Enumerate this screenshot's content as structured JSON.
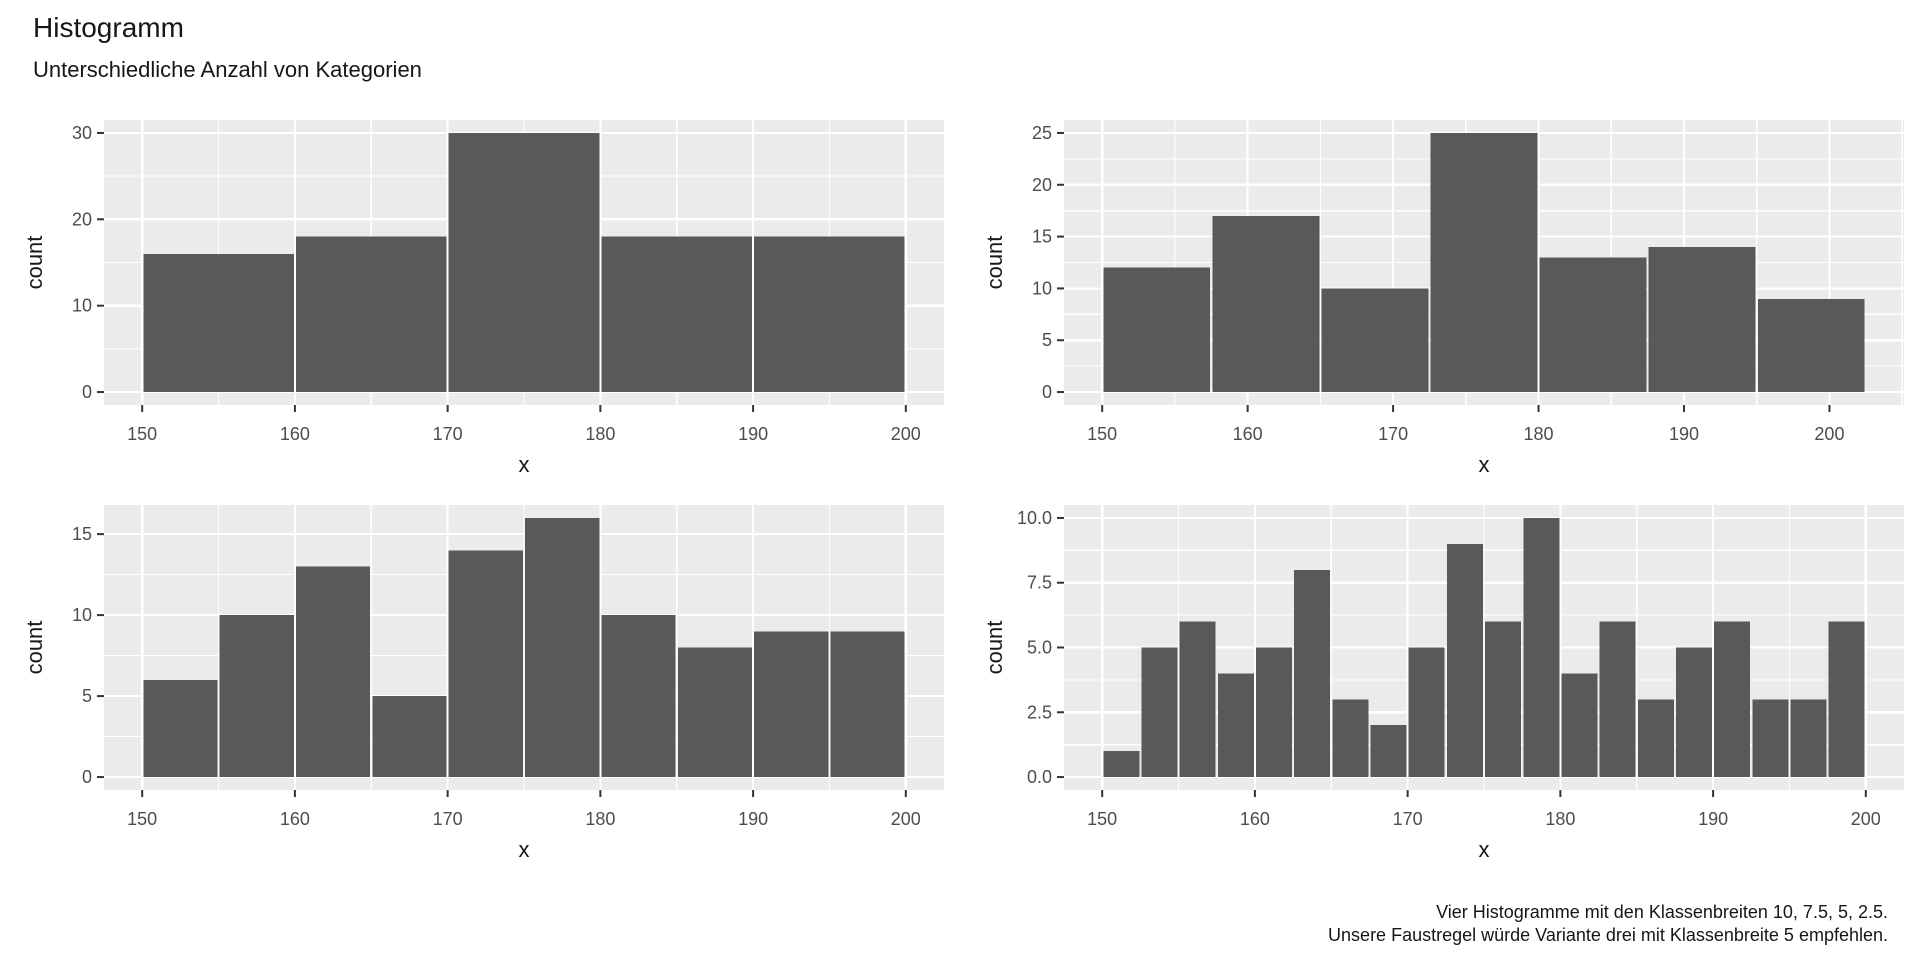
{
  "page": {
    "title": "Histogramm",
    "subtitle": "Unterschiedliche Anzahl von Kategorien",
    "caption_line1": "Vier Histogramme mit den Klassenbreiten 10, 7.5, 5, 2.5.",
    "caption_line2": "Unsere Faustregel würde Variante drei mit Klassenbreite 5 empfehlen."
  },
  "style": {
    "panel_bg": "#EBEBEB",
    "grid_color": "#FFFFFF",
    "bar_fill": "#595959",
    "tick_label_color": "#4D4D4D",
    "axis_title_color": "#1A1A1A",
    "tick_mark_color": "#333333"
  },
  "chart_data": [
    {
      "type": "bar",
      "panel": "top-left",
      "description": "Histogramm Klassenbreite 10",
      "xlabel": "x",
      "ylabel": "count",
      "bin_start": 150,
      "binwidth": 10,
      "counts": [
        16,
        18,
        30,
        18,
        18
      ],
      "xlim": [
        147.5,
        202.5
      ],
      "ylim": [
        -1.5,
        31.5
      ],
      "x_ticks": [
        150,
        160,
        170,
        180,
        190,
        200
      ],
      "x_minor": [
        155,
        165,
        175,
        185,
        195
      ],
      "y_ticks": [
        0,
        10,
        20,
        30
      ],
      "y_tick_labels": [
        "0",
        "10",
        "20",
        "30"
      ],
      "y_minor": [
        5,
        15,
        25
      ],
      "grid": true,
      "legend": "none"
    },
    {
      "type": "bar",
      "panel": "top-right",
      "description": "Histogramm Klassenbreite 7.5",
      "xlabel": "x",
      "ylabel": "count",
      "bin_start": 150,
      "binwidth": 7.5,
      "counts": [
        12,
        17,
        10,
        25,
        13,
        14,
        9
      ],
      "xlim": [
        147.375,
        205.125
      ],
      "ylim": [
        -1.25,
        26.25
      ],
      "x_ticks": [
        150,
        160,
        170,
        180,
        190,
        200
      ],
      "x_minor": [
        155,
        165,
        175,
        185,
        195,
        205
      ],
      "y_ticks": [
        0,
        5,
        10,
        15,
        20,
        25
      ],
      "y_tick_labels": [
        "0",
        "5",
        "10",
        "15",
        "20",
        "25"
      ],
      "y_minor": [
        2.5,
        7.5,
        12.5,
        17.5,
        22.5
      ],
      "grid": true,
      "legend": "none"
    },
    {
      "type": "bar",
      "panel": "bottom-left",
      "description": "Histogramm Klassenbreite 5",
      "xlabel": "x",
      "ylabel": "count",
      "bin_start": 150,
      "binwidth": 5,
      "counts": [
        6,
        10,
        13,
        5,
        14,
        16,
        10,
        8,
        9,
        9
      ],
      "xlim": [
        147.5,
        202.5
      ],
      "ylim": [
        -0.8,
        16.8
      ],
      "x_ticks": [
        150,
        160,
        170,
        180,
        190,
        200
      ],
      "x_minor": [
        155,
        165,
        175,
        185,
        195
      ],
      "y_ticks": [
        0,
        5,
        10,
        15
      ],
      "y_tick_labels": [
        "0",
        "5",
        "10",
        "15"
      ],
      "y_minor": [
        2.5,
        7.5,
        12.5
      ],
      "grid": true,
      "legend": "none"
    },
    {
      "type": "bar",
      "panel": "bottom-right",
      "description": "Histogramm Klassenbreite 2.5",
      "xlabel": "x",
      "ylabel": "count",
      "bin_start": 150,
      "binwidth": 2.5,
      "counts": [
        1,
        5,
        6,
        4,
        5,
        8,
        3,
        2,
        5,
        9,
        6,
        10,
        4,
        6,
        3,
        5,
        6,
        3,
        3,
        6
      ],
      "xlim": [
        147.5,
        202.5
      ],
      "ylim": [
        -0.5,
        10.5
      ],
      "x_ticks": [
        150,
        160,
        170,
        180,
        190,
        200
      ],
      "x_minor": [
        155,
        165,
        175,
        185,
        195
      ],
      "y_ticks": [
        0,
        2.5,
        5,
        7.5,
        10
      ],
      "y_tick_labels": [
        "0.0",
        "2.5",
        "5.0",
        "7.5",
        "10.0"
      ],
      "y_minor": [
        1.25,
        3.75,
        6.25,
        8.75
      ],
      "grid": true,
      "legend": "none"
    }
  ]
}
